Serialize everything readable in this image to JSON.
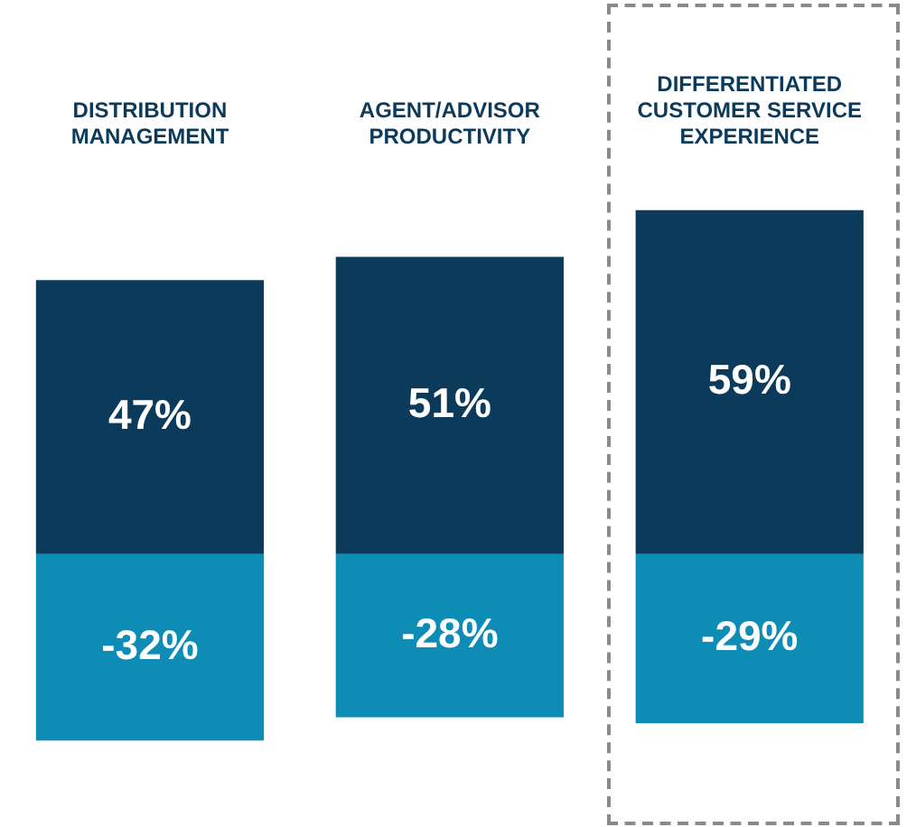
{
  "chart_data": {
    "type": "bar",
    "stacked": true,
    "legend": false,
    "grid": false,
    "categories": [
      "DISTRIBUTION\nMANAGEMENT",
      "AGENT/ADVISOR\nPRODUCTIVITY",
      "DIFFERENTIATED\nCUSTOMER SERVICE\nEXPERIENCE"
    ],
    "series": [
      {
        "color": "#0c3a5b",
        "values": [
          47,
          51,
          59
        ],
        "value_labels": [
          "47%",
          "51%",
          "59%"
        ]
      },
      {
        "color": "#0d8db5",
        "values": [
          -32,
          -28,
          -29
        ],
        "value_labels": [
          "-32%",
          "-28%",
          "-29%"
        ]
      }
    ]
  }
}
